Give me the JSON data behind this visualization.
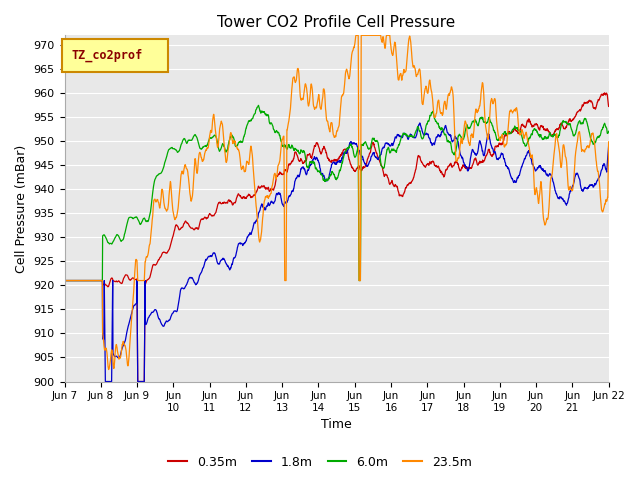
{
  "title": "Tower CO2 Profile Cell Pressure",
  "xlabel": "Time",
  "ylabel": "Cell Pressure (mBar)",
  "ylim": [
    900,
    972
  ],
  "yticks": [
    900,
    905,
    910,
    915,
    920,
    925,
    930,
    935,
    940,
    945,
    950,
    955,
    960,
    965,
    970
  ],
  "legend_label": "TZ_co2prof",
  "series_labels": [
    "0.35m",
    "1.8m",
    "6.0m",
    "23.5m"
  ],
  "series_colors": [
    "#cc0000",
    "#0000cc",
    "#00aa00",
    "#ff8800"
  ],
  "xtick_labels": [
    "Jun 7",
    "Jun 8",
    "Jun 9",
    "Jun 10",
    "Jun 11",
    "Jun 12",
    "Jun 13",
    "Jun 14",
    "Jun 15",
    "Jun 16",
    "Jun 17",
    "Jun 18",
    "Jun 19",
    "Jun 20",
    "Jun 21",
    "Jun 22"
  ],
  "plot_bgcolor": "#e8e8e8",
  "fig_bgcolor": "#ffffff",
  "legend_box_color": "#ffff99",
  "legend_box_edgecolor": "#cc8800"
}
